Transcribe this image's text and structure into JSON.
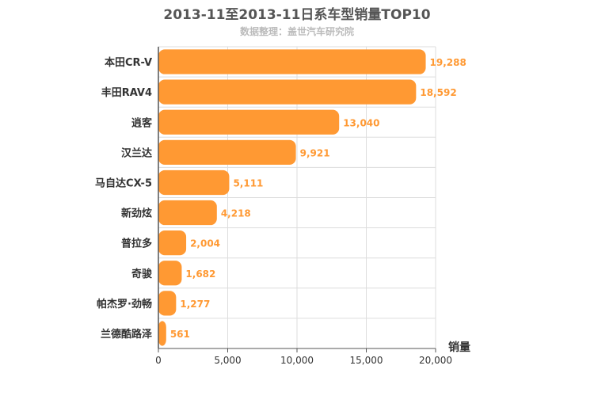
{
  "chart_data": {
    "type": "bar",
    "orientation": "horizontal",
    "title": "2013-11至2013-11日系车型销量TOP10",
    "subtitle": "数据整理：盖世汽车研究院",
    "categories": [
      "本田CR-V",
      "丰田RAV4",
      "逍客",
      "汉兰达",
      "马自达CX-5",
      "新劲炫",
      "普拉多",
      "奇骏",
      "帕杰罗·劲畅",
      "兰德酷路泽"
    ],
    "values": [
      19288,
      18592,
      13040,
      9921,
      5111,
      4218,
      2004,
      1682,
      1277,
      561
    ],
    "value_labels": [
      "19,288",
      "18,592",
      "13,040",
      "9,921",
      "5,111",
      "4,218",
      "2,004",
      "1,682",
      "1,277",
      "561"
    ],
    "xlabel": "销量",
    "ylabel": "",
    "xlim": [
      0,
      20000
    ],
    "xticks": [
      0,
      5000,
      10000,
      15000,
      20000
    ],
    "xtick_labels": [
      "0",
      "5,000",
      "10,000",
      "15,000",
      "20,000"
    ],
    "grid": true,
    "legend": "none",
    "bar_color": "#ff9933",
    "grid_color": "#dddddd",
    "axis_color": "#555555"
  }
}
